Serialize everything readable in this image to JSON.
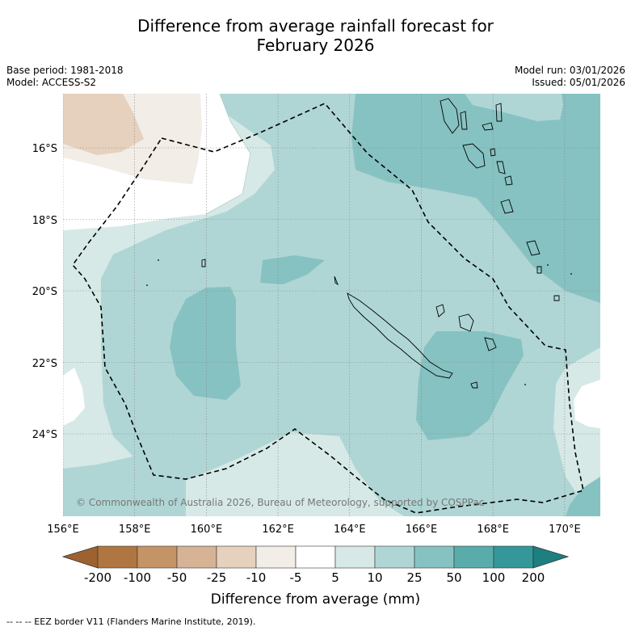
{
  "title_line1": "Difference from average rainfall forecast for",
  "title_line2": "February 2026",
  "meta_left": {
    "base_period": "Base period: 1981-2018",
    "model": "Model: ACCESS-S2"
  },
  "meta_right": {
    "model_run": "Model run: 03/01/2026",
    "issued": "Issued: 05/01/2026"
  },
  "copyright": "© Commonwealth of Australia 2026, Bureau of Meteorology, supported by COSPPac",
  "lat_labels": [
    "16°S",
    "18°S",
    "20°S",
    "22°S",
    "24°S"
  ],
  "lon_labels": [
    "156°E",
    "158°E",
    "160°E",
    "162°E",
    "164°E",
    "166°E",
    "168°E",
    "170°E"
  ],
  "colorbar": {
    "labels": [
      "-200",
      "-100",
      "-50",
      "-25",
      "-10",
      "-5",
      "5",
      "10",
      "25",
      "50",
      "100",
      "200"
    ],
    "colors": [
      "#af7642",
      "#c49467",
      "#d5b394",
      "#e5d1be",
      "#f2ede6",
      "#ffffff",
      "#d6e9e7",
      "#afd6d5",
      "#86c2c1",
      "#5aacab",
      "#34989a"
    ],
    "under_color": "#9d6230",
    "over_color": "#1e7f80",
    "title": "Difference from average (mm)"
  },
  "footer": "--  --  -- EEZ border V11 (Flanders Marine Institute, 2019)."
}
